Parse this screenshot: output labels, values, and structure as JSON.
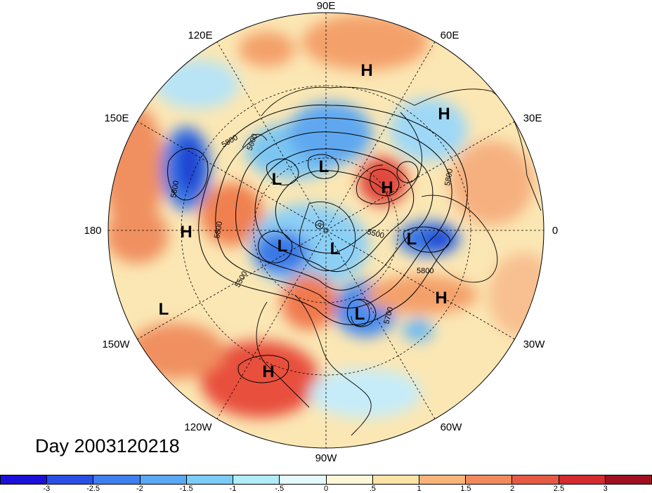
{
  "title": "Day 2003120218",
  "lon_labels": {
    "lon_90e": "90E",
    "lon_60e": "60E",
    "lon_30e": "30E",
    "lon_0": "0",
    "lon_30w": "30W",
    "lon_60w": "60W",
    "lon_90w": "90W",
    "lon_120w": "120W",
    "lon_150w": "150W",
    "lon_180": "180",
    "lon_150e": "150E",
    "lon_120e": "120E"
  },
  "pressure_centers": {
    "h_siberia": "H",
    "h_ural": "H",
    "l_kamchatka": "L",
    "l_east_siberia": "L",
    "h_europe": "H",
    "l_baffin": "L",
    "l_hudson": "L",
    "l_iceland": "L",
    "h_pacific": "H",
    "l_aleutian": "L",
    "l_newfoundland": "L",
    "h_atlantic": "H",
    "h_southwest_us": "H"
  },
  "contour_labels": {
    "c5800_a": "5800",
    "c5800_b": "5800",
    "c5800_c": "5800",
    "c5800_d": "5800",
    "c5800_e": "5800",
    "c5500_a": "5500",
    "c5500_b": "5500",
    "c5700": "5700",
    "c5600": "5600"
  },
  "colorbar": {
    "colors": [
      "#1a10d8",
      "#2a4fe6",
      "#3f7ff0",
      "#5aa8f5",
      "#7cccf8",
      "#b0ecfb",
      "#e3f9fd",
      "#fdf7d6",
      "#fbe3a6",
      "#f9b47a",
      "#f08a5c",
      "#e65a45",
      "#d42a30",
      "#a01020"
    ],
    "ticks": [
      "-3",
      "-2.5",
      "-2",
      "-1.5",
      "-1",
      "-.5",
      "0",
      ".5",
      "1",
      "1.5",
      "2",
      "2.5",
      "3"
    ]
  }
}
